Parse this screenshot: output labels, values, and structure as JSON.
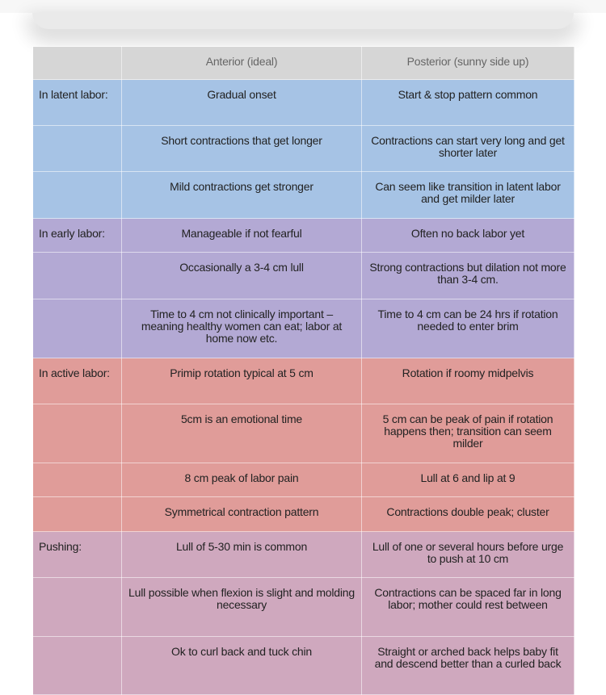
{
  "header": {
    "col0": "",
    "col1": "Anterior (ideal)",
    "col2": "Posterior (sunny side up)"
  },
  "colors": {
    "header": "#d6d6d6",
    "latent": "#a6c3e5",
    "early": "#b3a9d4",
    "active": "#e09c99",
    "pushing": "#cfa8be"
  },
  "rows": [
    {
      "group": "latent",
      "label": "In latent labor:",
      "anterior": "Gradual onset",
      "posterior": "Start & stop pattern common"
    },
    {
      "group": "latent",
      "label": "",
      "anterior": "Short contractions that get longer",
      "posterior": "Contractions can start very long and get shorter later"
    },
    {
      "group": "latent",
      "label": "",
      "anterior": "Mild contractions get stronger",
      "posterior": "Can seem like transition in latent labor and get milder later"
    },
    {
      "group": "early",
      "label": "In early labor:",
      "anterior": "Manageable if not fearful",
      "posterior": "Often no back labor yet"
    },
    {
      "group": "early",
      "label": "",
      "anterior": "Occasionally a 3-4 cm lull",
      "posterior": "Strong contractions but dilation not more than 3-4 cm."
    },
    {
      "group": "early",
      "label": "",
      "anterior": "Time to 4 cm not clinically important – meaning healthy women can eat; labor at home now etc.",
      "posterior": "Time to 4 cm can be 24 hrs if rotation needed to enter brim"
    },
    {
      "group": "active",
      "label": "In active labor:",
      "anterior": "Primip rotation typical at 5 cm",
      "posterior": "Rotation if roomy midpelvis"
    },
    {
      "group": "active",
      "label": "",
      "anterior": "5cm is an emotional time",
      "posterior": "5 cm can be peak of pain if rotation happens then; transition can seem milder"
    },
    {
      "group": "active",
      "label": "",
      "anterior": "8 cm peak of labor pain",
      "posterior": "Lull at 6 and lip at 9"
    },
    {
      "group": "active",
      "label": "",
      "anterior": "Symmetrical contraction pattern",
      "posterior": "Contractions double peak; cluster"
    },
    {
      "group": "push",
      "label": "Pushing:",
      "anterior": "Lull of 5-30 min is common",
      "posterior": "Lull of one or several hours before urge to push at 10 cm"
    },
    {
      "group": "push",
      "label": "",
      "anterior": "Lull possible when flexion is slight and molding necessary",
      "posterior": "Contractions can be spaced far in long labor; mother could rest between"
    },
    {
      "group": "push",
      "label": "",
      "anterior": "Ok to curl back and tuck chin",
      "posterior": "Straight or arched back helps baby fit and descend better than a curled back"
    }
  ]
}
